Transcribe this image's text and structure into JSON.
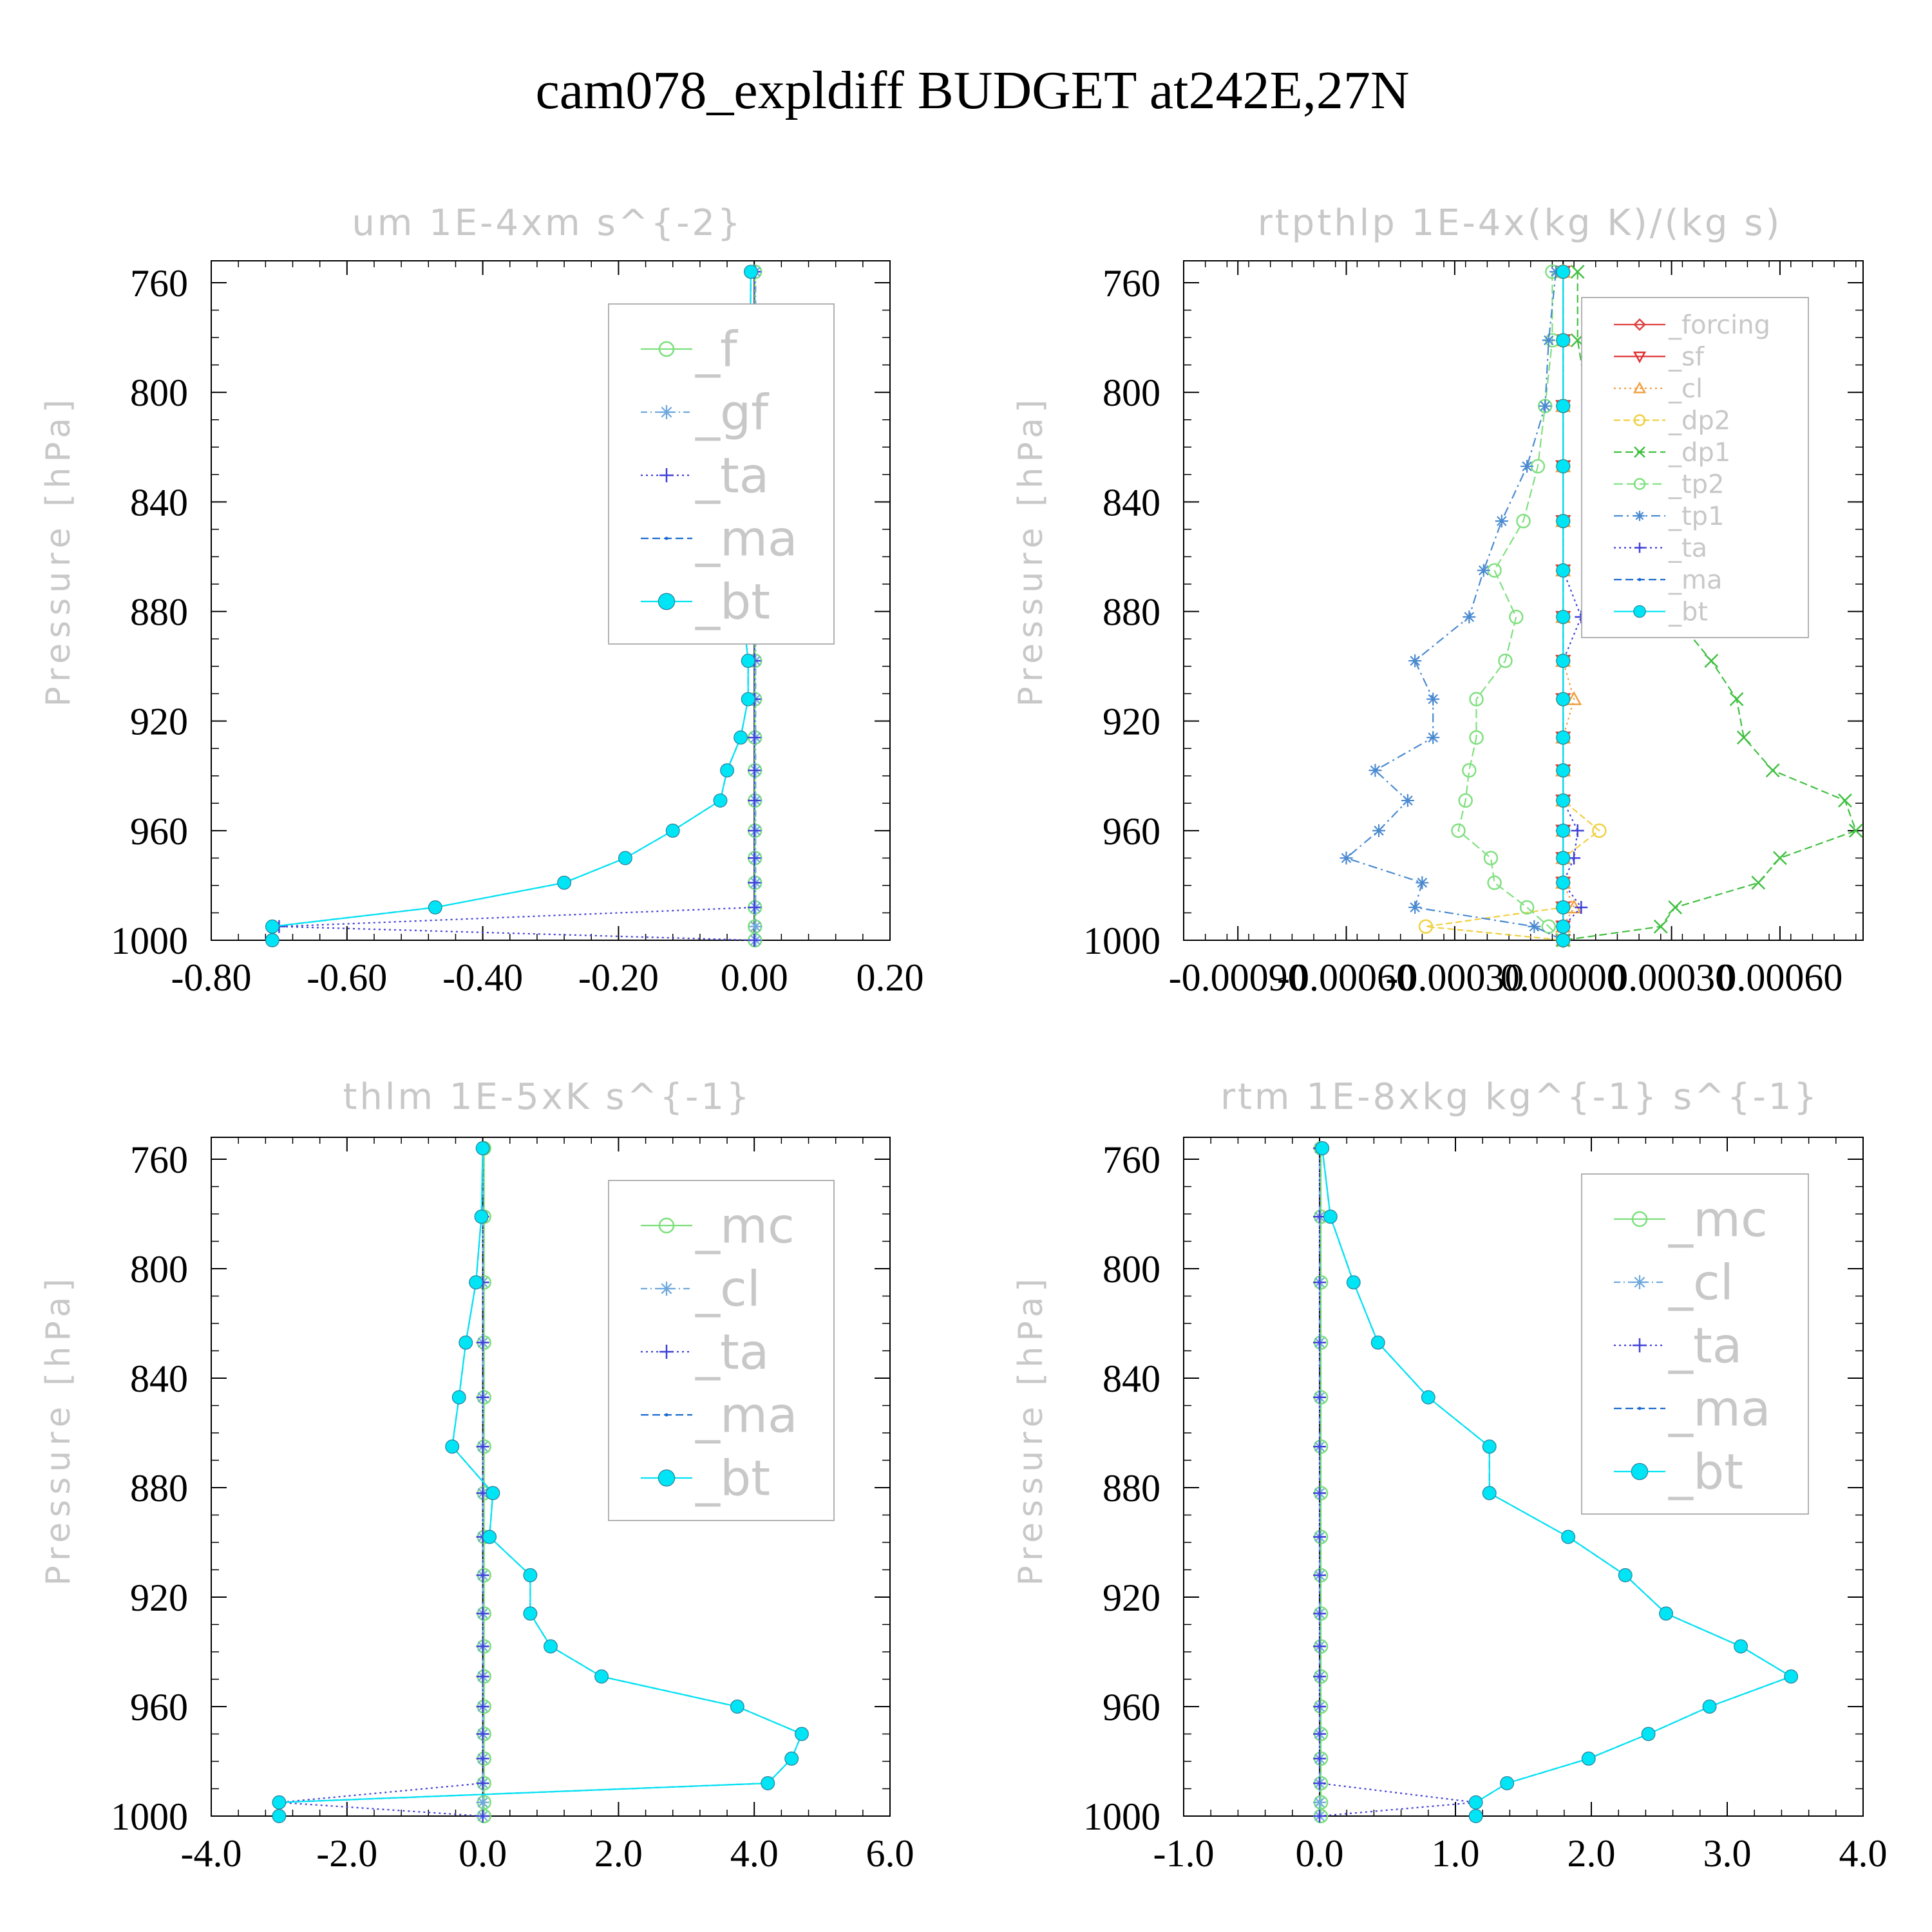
{
  "title": "cam078_expldiff  BUDGET at242E,27N",
  "chart_data": [
    {
      "type": "line",
      "title": "um   1E-4xm s^{-2}",
      "ylabel": "Pressure [hPa]",
      "ylim": [
        1000,
        752
      ],
      "y_ticks": [
        "760",
        "800",
        "840",
        "880",
        "920",
        "960",
        "1000"
      ],
      "xlim": [
        -0.8,
        0.2
      ],
      "x_ticks": [
        "-0.80",
        "-0.60",
        "-0.40",
        "-0.20",
        "0.00",
        "0.20"
      ],
      "y": [
        756,
        781,
        805,
        827,
        847,
        865,
        882,
        898,
        912,
        926,
        938,
        949,
        960,
        970,
        979,
        988,
        995,
        1000
      ],
      "series": [
        {
          "name": "_f",
          "color": "#7ce07c",
          "marker": "circle",
          "dash": "",
          "values": [
            0.001,
            0.001,
            0.001,
            0.001,
            0.001,
            0.001,
            0.001,
            0.001,
            0.001,
            0.001,
            0.001,
            0.001,
            0.001,
            0.001,
            0.001,
            0.001,
            0.001,
            0.001
          ]
        },
        {
          "name": "_gf",
          "color": "#6ea8dc",
          "marker": "star",
          "dash": "10 5 2 5",
          "values": [
            0.002,
            0.002,
            0.002,
            0.002,
            0.002,
            0.002,
            0.002,
            0.002,
            0.002,
            0.002,
            0.002,
            0.002,
            0.002,
            0.002,
            0.002,
            0.002,
            0.002,
            0.002
          ]
        },
        {
          "name": "_ta",
          "color": "#4040d8",
          "marker": "plus",
          "dash": "3 5",
          "values": [
            0.0,
            0.0,
            0.0,
            0.0,
            0.0,
            0.0,
            0.0,
            0.0,
            0.0,
            0.0,
            0.0,
            0.0,
            0.0,
            0.0,
            0.0,
            0.0,
            -0.7,
            0.0
          ]
        },
        {
          "name": "_ma",
          "color": "#1a6ad0",
          "marker": "dot",
          "dash": "12 6",
          "values": [
            -0.005,
            -0.006,
            -0.009,
            -0.011,
            -0.015,
            -0.018,
            -0.016,
            -0.009,
            -0.009,
            -0.02,
            -0.04,
            -0.05,
            -0.12,
            -0.19,
            -0.28,
            -0.47,
            -0.71,
            -0.71
          ]
        },
        {
          "name": "_bt",
          "color": "#00e5f5",
          "marker": "filled",
          "dash": "",
          "values": [
            -0.005,
            -0.006,
            -0.009,
            -0.011,
            -0.015,
            -0.018,
            -0.016,
            -0.009,
            -0.009,
            -0.02,
            -0.04,
            -0.05,
            -0.12,
            -0.19,
            -0.28,
            -0.47,
            -0.71,
            -0.71
          ]
        }
      ],
      "legend": "top-right"
    },
    {
      "type": "line",
      "title": "rtpthlp   1E-4x(kg K)/(kg s)",
      "ylabel": "Pressure [hPa]",
      "ylim": [
        1000,
        752
      ],
      "y_ticks": [
        "760",
        "800",
        "840",
        "880",
        "920",
        "960",
        "1000"
      ],
      "xlim": [
        -0.00105,
        0.00083
      ],
      "x_ticks": [
        "-0.00090",
        "-0.00060",
        "-0.00030",
        "0.00000",
        "0.00030",
        "0.00060"
      ],
      "y": [
        756,
        781,
        805,
        827,
        847,
        865,
        882,
        898,
        912,
        926,
        938,
        949,
        960,
        970,
        979,
        988,
        995,
        1000
      ],
      "series": [
        {
          "name": "_forcing",
          "color": "#e04040",
          "marker": "diamond",
          "dash": "",
          "values": [
            0,
            0,
            0,
            0,
            0,
            0,
            0,
            0,
            0,
            0,
            0,
            0,
            0,
            0,
            0,
            0,
            0,
            0
          ]
        },
        {
          "name": "_sf",
          "color": "#e03030",
          "marker": "tri-down",
          "dash": "",
          "values": [
            0,
            0,
            0,
            0,
            0,
            0,
            0,
            0,
            0,
            0,
            0,
            0,
            0,
            0,
            0,
            0,
            0,
            0
          ]
        },
        {
          "name": "_cl",
          "color": "#f0a040",
          "marker": "tri-up",
          "dash": "3 5",
          "values": [
            0,
            0,
            0,
            0,
            0,
            0,
            0,
            0,
            3e-05,
            0,
            0,
            0,
            0,
            0,
            0,
            3e-05,
            0,
            0
          ]
        },
        {
          "name": "_dp2",
          "color": "#f0d040",
          "marker": "circle",
          "dash": "10 5",
          "values": [
            0,
            0,
            0,
            0,
            0,
            0,
            0,
            0,
            0,
            0,
            0,
            0,
            0.0001,
            0,
            0,
            0,
            -0.00038,
            0
          ]
        },
        {
          "name": "_dp1",
          "color": "#40c040",
          "marker": "x",
          "dash": "12 6",
          "values": [
            4e-05,
            4e-05,
            7e-05,
            0.00013,
            0.0002,
            0.00028,
            0.00031,
            0.00041,
            0.00048,
            0.0005,
            0.00058,
            0.00078,
            0.00081,
            0.0006,
            0.00054,
            0.00031,
            0.00027,
            0
          ]
        },
        {
          "name": "_tp2",
          "color": "#80e080",
          "marker": "circle",
          "dash": "14 6",
          "values": [
            -3e-05,
            -3e-05,
            -5e-05,
            -7e-05,
            -0.00011,
            -0.00019,
            -0.00013,
            -0.00016,
            -0.00024,
            -0.00024,
            -0.00026,
            -0.00027,
            -0.00029,
            -0.0002,
            -0.00019,
            -0.0001,
            -4e-05,
            0
          ]
        },
        {
          "name": "_tp1",
          "color": "#4a8ad0",
          "marker": "star",
          "dash": "14 6 3 6",
          "values": [
            -2e-05,
            -4e-05,
            -5e-05,
            -0.0001,
            -0.00017,
            -0.00022,
            -0.00026,
            -0.00041,
            -0.00036,
            -0.00036,
            -0.00052,
            -0.00043,
            -0.00051,
            -0.0006,
            -0.00039,
            -0.00041,
            -8e-05,
            0
          ]
        },
        {
          "name": "_ta",
          "color": "#4040d8",
          "marker": "plus",
          "dash": "3 5",
          "values": [
            0,
            0,
            0,
            0,
            0,
            0,
            5e-05,
            0,
            0,
            0,
            0,
            0,
            4e-05,
            3e-05,
            0,
            5e-05,
            0,
            0
          ]
        },
        {
          "name": "_ma",
          "color": "#1a6ad0",
          "marker": "dot",
          "dash": "12 6",
          "values": [
            0,
            0,
            0,
            0,
            0,
            0,
            0,
            0,
            0,
            0,
            0,
            0,
            0,
            0,
            0,
            0,
            0,
            0
          ]
        },
        {
          "name": "_bt",
          "color": "#00e5f5",
          "marker": "filled",
          "dash": "",
          "values": [
            0,
            0,
            0,
            0,
            0,
            0,
            0,
            0,
            0,
            0,
            0,
            0,
            0,
            0,
            0,
            0,
            0,
            0
          ]
        }
      ],
      "legend": "top-right"
    },
    {
      "type": "line",
      "title": "thlm   1E-5xK s^{-1}",
      "ylabel": "Pressure [hPa]",
      "ylim": [
        1000,
        752
      ],
      "y_ticks": [
        "760",
        "800",
        "840",
        "880",
        "920",
        "960",
        "1000"
      ],
      "xlim": [
        -4.0,
        6.0
      ],
      "x_ticks": [
        "-4.0",
        "-2.0",
        "0.0",
        "2.0",
        "4.0",
        "6.0"
      ],
      "y": [
        756,
        781,
        805,
        827,
        847,
        865,
        882,
        898,
        912,
        926,
        938,
        949,
        960,
        970,
        979,
        988,
        995,
        1000
      ],
      "series": [
        {
          "name": "_mc",
          "color": "#7ce07c",
          "marker": "circle",
          "dash": "",
          "values": [
            0.02,
            0.02,
            0.02,
            0.02,
            0.02,
            0.02,
            0.02,
            0.02,
            0.02,
            0.02,
            0.02,
            0.02,
            0.02,
            0.02,
            0.02,
            0.02,
            0.02,
            0.02
          ]
        },
        {
          "name": "_cl",
          "color": "#6ea8dc",
          "marker": "star",
          "dash": "10 5 2 5",
          "values": [
            0.0,
            0.0,
            0.0,
            0.0,
            0.0,
            0.0,
            0.0,
            0.0,
            0.0,
            0.0,
            0.0,
            0.0,
            0.0,
            0.0,
            0.0,
            0.0,
            0.0,
            0.0
          ]
        },
        {
          "name": "_ta",
          "color": "#4040d8",
          "marker": "plus",
          "dash": "3 5",
          "values": [
            0.0,
            0.0,
            0.0,
            0.0,
            0.0,
            0.0,
            0.0,
            0.0,
            0.0,
            0.0,
            0.0,
            0.0,
            0.0,
            0.0,
            0.0,
            0.0,
            -3.0,
            0.0
          ]
        },
        {
          "name": "_ma",
          "color": "#1a6ad0",
          "marker": "dot",
          "dash": "12 6",
          "values": [
            0.0,
            -0.02,
            -0.1,
            -0.25,
            -0.35,
            -0.45,
            0.15,
            0.1,
            0.7,
            0.7,
            1.0,
            1.75,
            3.75,
            4.7,
            4.55,
            4.2,
            -3.0,
            -3.0
          ]
        },
        {
          "name": "_bt",
          "color": "#00e5f5",
          "marker": "filled",
          "dash": "",
          "values": [
            0.0,
            -0.02,
            -0.1,
            -0.25,
            -0.35,
            -0.45,
            0.15,
            0.1,
            0.7,
            0.7,
            1.0,
            1.75,
            3.75,
            4.7,
            4.55,
            4.2,
            -3.0,
            -3.0
          ]
        }
      ],
      "legend": "top-right"
    },
    {
      "type": "line",
      "title": "rtm   1E-8xkg kg^{-1} s^{-1}",
      "ylabel": "Pressure [hPa]",
      "ylim": [
        1000,
        752
      ],
      "y_ticks": [
        "760",
        "800",
        "840",
        "880",
        "920",
        "960",
        "1000"
      ],
      "xlim": [
        -1.0,
        4.0
      ],
      "x_ticks": [
        "-1.0",
        "0.0",
        "1.0",
        "2.0",
        "3.0",
        "4.0"
      ],
      "y": [
        756,
        781,
        805,
        827,
        847,
        865,
        882,
        898,
        912,
        926,
        938,
        949,
        960,
        970,
        979,
        988,
        995,
        1000
      ],
      "series": [
        {
          "name": "_mc",
          "color": "#7ce07c",
          "marker": "circle",
          "dash": "",
          "values": [
            0.01,
            0.01,
            0.01,
            0.01,
            0.01,
            0.01,
            0.01,
            0.01,
            0.01,
            0.01,
            0.01,
            0.01,
            0.01,
            0.01,
            0.01,
            0.01,
            0.01,
            0.01
          ]
        },
        {
          "name": "_cl",
          "color": "#6ea8dc",
          "marker": "star",
          "dash": "10 5 2 5",
          "values": [
            0.0,
            0.0,
            0.0,
            0.0,
            0.0,
            0.0,
            0.0,
            0.0,
            0.0,
            0.0,
            0.0,
            0.0,
            0.0,
            0.0,
            0.0,
            0.0,
            0.0,
            0.0
          ]
        },
        {
          "name": "_ta",
          "color": "#4040d8",
          "marker": "plus",
          "dash": "3 5",
          "values": [
            0.0,
            0.0,
            0.0,
            0.0,
            0.0,
            0.0,
            0.0,
            0.0,
            0.0,
            0.0,
            0.0,
            0.0,
            0.0,
            0.0,
            0.0,
            0.0,
            1.15,
            0.0
          ]
        },
        {
          "name": "_ma",
          "color": "#1a6ad0",
          "marker": "dot",
          "dash": "12 6",
          "values": [
            0.02,
            0.08,
            0.25,
            0.43,
            0.8,
            1.25,
            1.25,
            1.83,
            2.25,
            2.55,
            3.1,
            3.47,
            2.87,
            2.42,
            1.98,
            1.38,
            1.15,
            1.15
          ]
        },
        {
          "name": "_bt",
          "color": "#00e5f5",
          "marker": "filled",
          "dash": "",
          "values": [
            0.02,
            0.08,
            0.25,
            0.43,
            0.8,
            1.25,
            1.25,
            1.83,
            2.25,
            2.55,
            3.1,
            3.47,
            2.87,
            2.42,
            1.98,
            1.38,
            1.15,
            1.15
          ]
        }
      ],
      "legend": "top-right"
    }
  ]
}
